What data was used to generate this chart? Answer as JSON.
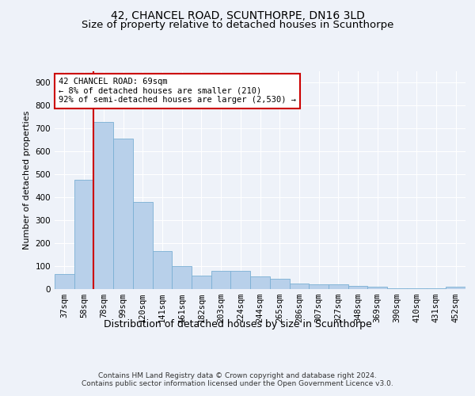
{
  "title1": "42, CHANCEL ROAD, SCUNTHORPE, DN16 3LD",
  "title2": "Size of property relative to detached houses in Scunthorpe",
  "xlabel": "Distribution of detached houses by size in Scunthorpe",
  "ylabel": "Number of detached properties",
  "categories": [
    "37sqm",
    "58sqm",
    "78sqm",
    "99sqm",
    "120sqm",
    "141sqm",
    "161sqm",
    "182sqm",
    "203sqm",
    "224sqm",
    "244sqm",
    "265sqm",
    "286sqm",
    "307sqm",
    "327sqm",
    "348sqm",
    "369sqm",
    "390sqm",
    "410sqm",
    "431sqm",
    "452sqm"
  ],
  "values": [
    65,
    475,
    730,
    655,
    380,
    165,
    100,
    60,
    80,
    80,
    55,
    45,
    25,
    20,
    20,
    15,
    10,
    5,
    5,
    5,
    10
  ],
  "bar_color": "#b8d0ea",
  "bar_edge_color": "#7aafd4",
  "annotation_text": "42 CHANCEL ROAD: 69sqm\n← 8% of detached houses are smaller (210)\n92% of semi-detached houses are larger (2,530) →",
  "annotation_box_color": "#ffffff",
  "annotation_box_edge_color": "#cc0000",
  "vline_color": "#cc0000",
  "vline_x": 1.5,
  "ylim": [
    0,
    950
  ],
  "yticks": [
    0,
    100,
    200,
    300,
    400,
    500,
    600,
    700,
    800,
    900
  ],
  "footer": "Contains HM Land Registry data © Crown copyright and database right 2024.\nContains public sector information licensed under the Open Government Licence v3.0.",
  "background_color": "#eef2f9",
  "plot_bg_color": "#eef2f9",
  "title1_fontsize": 10,
  "title2_fontsize": 9.5,
  "xlabel_fontsize": 9,
  "ylabel_fontsize": 8,
  "tick_fontsize": 7.5,
  "footer_fontsize": 6.5
}
